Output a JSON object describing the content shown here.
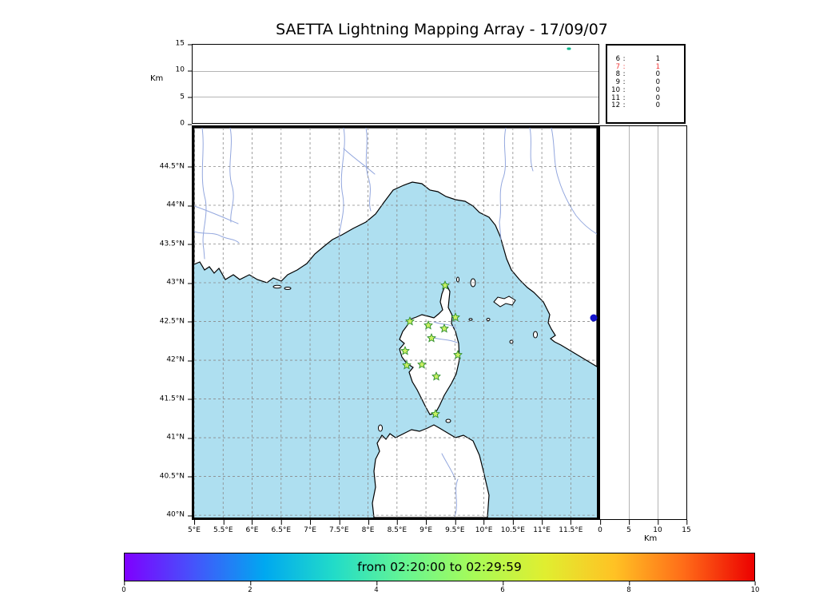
{
  "title": "SAETTA Lightning Mapping Array - 17/09/07",
  "chart_data": [
    {
      "type": "scatter",
      "name": "altitude_panel",
      "description": "Altitude cross-section panel (top)",
      "ylabel": "Km",
      "ylim": [
        0,
        15
      ],
      "yticks": [
        0,
        5,
        10,
        15
      ],
      "grid": true,
      "points": [
        {
          "x_frac": 0.928,
          "altitude_km": 14.3,
          "color": "#00b489"
        }
      ]
    },
    {
      "type": "table",
      "name": "sources_per_station_count",
      "description": "Sources detected per number of contributing stations",
      "rows": [
        {
          "stations": "6",
          "count": "1",
          "color": "#000000"
        },
        {
          "stations": "7",
          "count": "1",
          "color": "#f03434"
        },
        {
          "stations": "8",
          "count": "0",
          "color": "#000000"
        },
        {
          "stations": "9",
          "count": "0",
          "color": "#000000"
        },
        {
          "stations": "10",
          "count": "0",
          "color": "#000000"
        },
        {
          "stations": "11",
          "count": "0",
          "color": "#000000"
        },
        {
          "stations": "12",
          "count": "0",
          "color": "#000000"
        }
      ]
    },
    {
      "type": "scatter",
      "name": "map_panel",
      "description": "Plan-view map of Corsica region with LMA stations (green stars) and lightning source (blue dot)",
      "lon_range": [
        5.0,
        11.95
      ],
      "lat_range": [
        39.97,
        45.0
      ],
      "lon_ticks": [
        "5°E",
        "5.5°E",
        "6°E",
        "6.5°E",
        "7°E",
        "7.5°E",
        "8°E",
        "8.5°E",
        "9°E",
        "9.5°E",
        "10°E",
        "10.5°E",
        "11°E",
        "11.5°E"
      ],
      "lat_ticks": [
        "44.5°N",
        "44°N",
        "43.5°N",
        "43°N",
        "42.5°N",
        "42°N",
        "41.5°N",
        "41°N",
        "40.5°N",
        "40°N"
      ],
      "sea_color": "#aedff0",
      "river_color": "#93a7de",
      "station_fill": "#c9f062",
      "station_stroke": "#2f8f2f",
      "stations": [
        {
          "lon": 9.33,
          "lat": 42.97
        },
        {
          "lon": 8.73,
          "lat": 42.51
        },
        {
          "lon": 9.04,
          "lat": 42.45
        },
        {
          "lon": 9.31,
          "lat": 42.41
        },
        {
          "lon": 9.51,
          "lat": 42.56
        },
        {
          "lon": 9.1,
          "lat": 42.29
        },
        {
          "lon": 8.64,
          "lat": 42.12
        },
        {
          "lon": 9.55,
          "lat": 42.07
        },
        {
          "lon": 8.67,
          "lat": 41.94
        },
        {
          "lon": 8.93,
          "lat": 41.95
        },
        {
          "lon": 9.18,
          "lat": 41.79
        },
        {
          "lon": 9.16,
          "lat": 41.31
        }
      ],
      "sources": [
        {
          "lon": 11.9,
          "lat": 42.55,
          "color": "#1414cc"
        }
      ]
    },
    {
      "type": "scatter",
      "name": "altitude_latitude_panel",
      "description": "Altitude vs latitude panel (right)",
      "xlabel": "Km",
      "xlim": [
        0,
        15
      ],
      "xticks": [
        0,
        5,
        10,
        15
      ],
      "grid": true,
      "points": []
    },
    {
      "type": "colorbar",
      "name": "time_colorbar",
      "label": "from 02:20:00 to 02:29:59",
      "range": [
        0,
        10
      ],
      "ticks": [
        0,
        2,
        4,
        6,
        8,
        10
      ],
      "colors": [
        "#7f00ff",
        "#4455fb",
        "#00a8f0",
        "#22dcc8",
        "#66f593",
        "#a8fb57",
        "#e0ee30",
        "#ffc224",
        "#ff6b18",
        "#ec0000"
      ]
    }
  ]
}
